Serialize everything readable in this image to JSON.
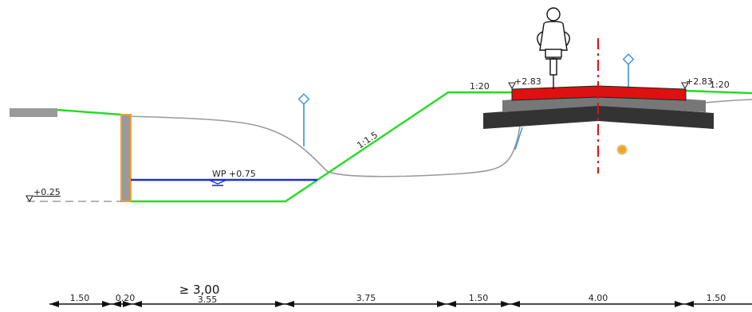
{
  "labels": {
    "left_level": "+0.25",
    "water_level": "WP +0.75",
    "slope_left_bank": "1:1.5",
    "slope_left_top": "1:20",
    "slope_right_top": "1:20",
    "path_level_left": "+2.83",
    "path_level_right": "+2.83",
    "min_width": "≥ 3,00",
    "hidden_width": "3.55"
  },
  "dimensions": [
    "1.50",
    "0.20",
    "3.75",
    "1.50",
    "4.00",
    "1.50"
  ],
  "colors": {
    "terrain": "#22dd22",
    "existing_ground": "#9a9a9a",
    "water": "#1f2fd0",
    "wall": "#9a9a9a",
    "wall_edge": "#f0a030",
    "pavement": "#dd1111",
    "base_layer": "#777777",
    "subbase": "#333333",
    "axis": "#dd1111",
    "marker": "#3a8fe0",
    "utility": "#f2a51a"
  },
  "icons": {
    "cyclist": "cyclist-icon",
    "level_markers": "level-marker-icon"
  }
}
